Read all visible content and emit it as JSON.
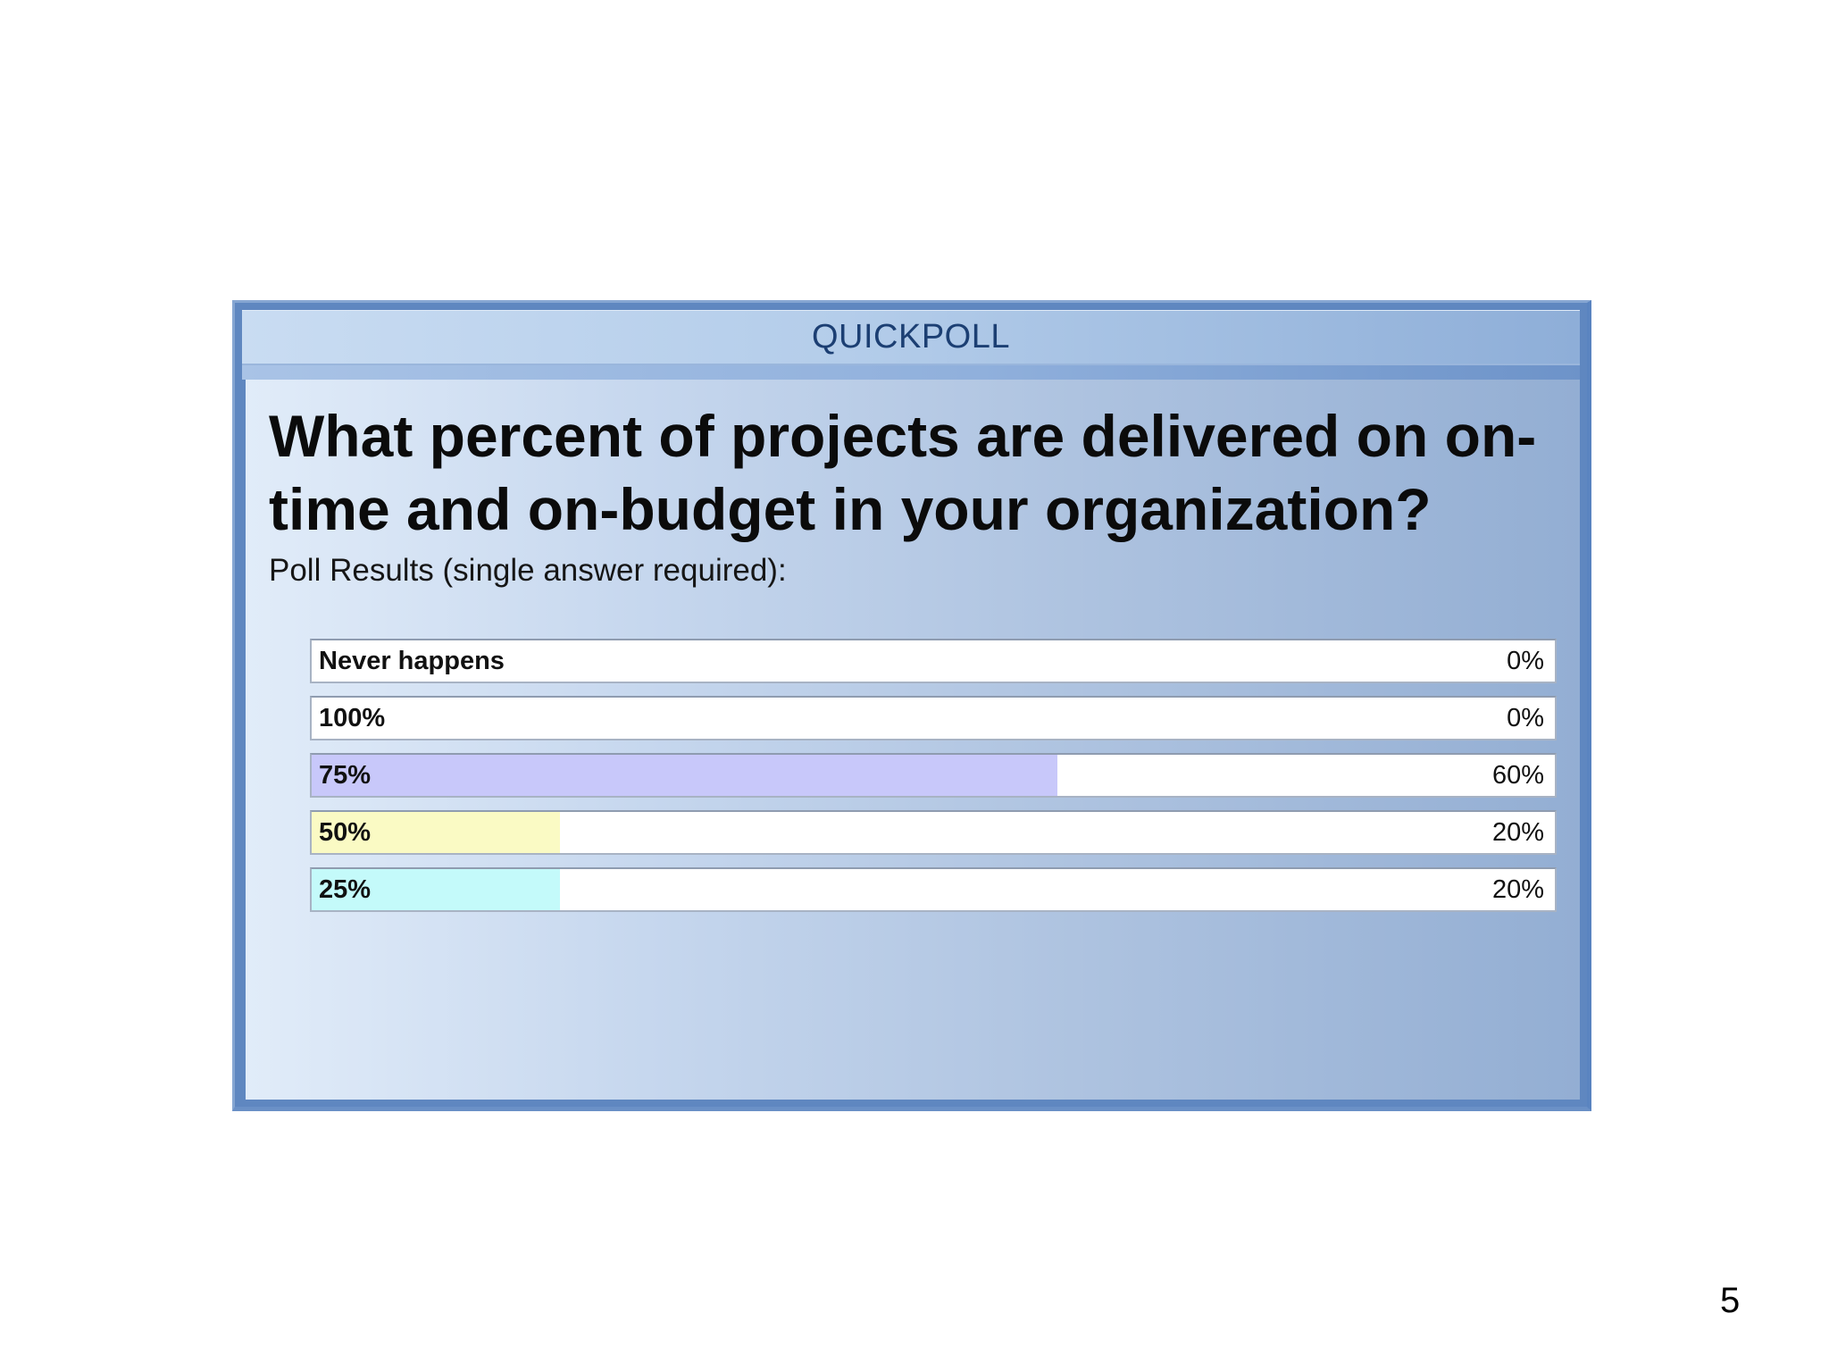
{
  "poll": {
    "header": "QUICKPOLL",
    "question": "What percent of projects are delivered on on-time and on-budget in your organization?",
    "subtitle": "Poll Results (single answer required):"
  },
  "chart_data": {
    "type": "bar",
    "orientation": "horizontal",
    "categories": [
      "Never happens",
      "100%",
      "75%",
      "50%",
      "25%"
    ],
    "values": [
      0,
      0,
      60,
      20,
      20
    ],
    "value_labels": [
      "0%",
      "0%",
      "60%",
      "20%",
      "20%"
    ],
    "unit": "%",
    "xlim": [
      0,
      100
    ],
    "colors": [
      "#ffffff",
      "#ffffff",
      "#c8c8fa",
      "#fafac4",
      "#c4fafa"
    ],
    "grid": false,
    "legend": "none"
  },
  "footer": {
    "page_number": "5"
  },
  "theme": {
    "panel_border": "#5f87c0",
    "header_text": "#1c3f73"
  }
}
